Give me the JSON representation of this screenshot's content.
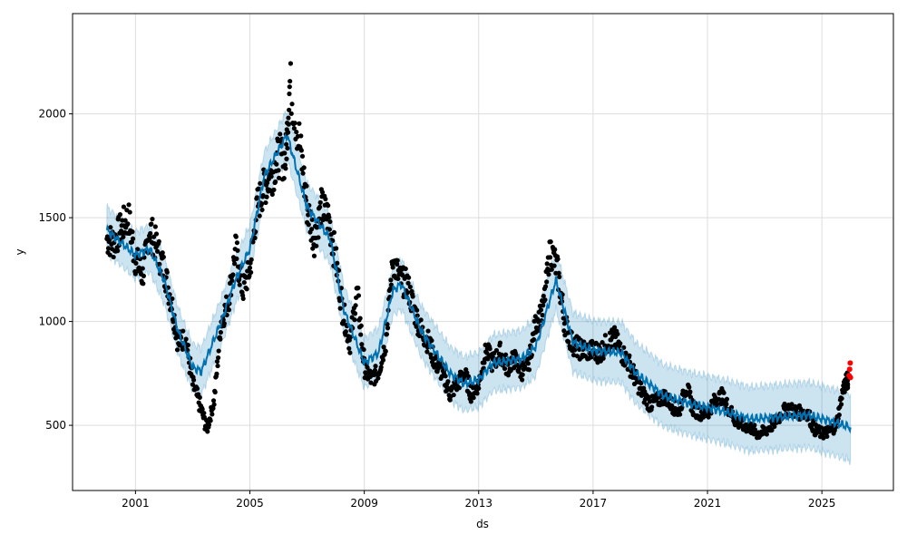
{
  "chart_data": {
    "type": "scatter",
    "title": "",
    "xlabel": "ds",
    "ylabel": "y",
    "xlim": [
      1998.8,
      2027.5
    ],
    "ylim": [
      186,
      2483
    ],
    "x_ticks": [
      "2001",
      "2005",
      "2009",
      "2013",
      "2017",
      "2021",
      "2025"
    ],
    "x_tick_values": [
      2001,
      2005,
      2009,
      2013,
      2017,
      2021,
      2025
    ],
    "y_ticks": [
      "500",
      "1000",
      "1500",
      "2000"
    ],
    "y_tick_values": [
      500,
      1000,
      1500,
      2000
    ],
    "grid": true,
    "colors": {
      "observed": "#000000",
      "recent": "#ff0000",
      "yhat": "#0072B2",
      "band": "#0072B2"
    },
    "observed": [
      [
        2000.0,
        1400
      ],
      [
        2000.25,
        1380
      ],
      [
        2000.5,
        1450
      ],
      [
        2000.75,
        1500
      ],
      [
        2001.0,
        1300
      ],
      [
        2001.25,
        1220
      ],
      [
        2001.5,
        1450
      ],
      [
        2001.75,
        1350
      ],
      [
        2002.0,
        1250
      ],
      [
        2002.25,
        1100
      ],
      [
        2002.5,
        900
      ],
      [
        2002.75,
        920
      ],
      [
        2003.0,
        700
      ],
      [
        2003.25,
        600
      ],
      [
        2003.5,
        480
      ],
      [
        2003.75,
        620
      ],
      [
        2004.0,
        1000
      ],
      [
        2004.25,
        1100
      ],
      [
        2004.5,
        1350
      ],
      [
        2004.75,
        1150
      ],
      [
        2005.0,
        1250
      ],
      [
        2005.25,
        1550
      ],
      [
        2005.5,
        1650
      ],
      [
        2005.75,
        1700
      ],
      [
        2006.0,
        1800
      ],
      [
        2006.25,
        1780
      ],
      [
        2006.4,
        2150
      ],
      [
        2006.75,
        1850
      ],
      [
        2007.0,
        1550
      ],
      [
        2007.25,
        1400
      ],
      [
        2007.5,
        1550
      ],
      [
        2007.75,
        1500
      ],
      [
        2008.0,
        1300
      ],
      [
        2008.25,
        1050
      ],
      [
        2008.5,
        900
      ],
      [
        2008.75,
        1150
      ],
      [
        2009.0,
        780
      ],
      [
        2009.25,
        720
      ],
      [
        2009.5,
        760
      ],
      [
        2009.75,
        900
      ],
      [
        2010.0,
        1300
      ],
      [
        2010.25,
        1200
      ],
      [
        2010.5,
        1180
      ],
      [
        2010.75,
        1050
      ],
      [
        2011.0,
        950
      ],
      [
        2011.25,
        900
      ],
      [
        2011.5,
        800
      ],
      [
        2011.75,
        750
      ],
      [
        2012.0,
        650
      ],
      [
        2012.25,
        700
      ],
      [
        2012.5,
        750
      ],
      [
        2012.75,
        650
      ],
      [
        2013.0,
        700
      ],
      [
        2013.25,
        860
      ],
      [
        2013.5,
        800
      ],
      [
        2013.75,
        850
      ],
      [
        2014.0,
        780
      ],
      [
        2014.25,
        820
      ],
      [
        2014.5,
        760
      ],
      [
        2014.75,
        800
      ],
      [
        2015.0,
        1000
      ],
      [
        2015.25,
        1050
      ],
      [
        2015.5,
        1350
      ],
      [
        2015.75,
        1250
      ],
      [
        2016.0,
        1000
      ],
      [
        2016.25,
        900
      ],
      [
        2016.5,
        870
      ],
      [
        2016.75,
        860
      ],
      [
        2017.0,
        860
      ],
      [
        2017.25,
        850
      ],
      [
        2017.5,
        900
      ],
      [
        2017.75,
        920
      ],
      [
        2018.0,
        850
      ],
      [
        2018.25,
        800
      ],
      [
        2018.5,
        720
      ],
      [
        2018.75,
        650
      ],
      [
        2019.0,
        600
      ],
      [
        2019.25,
        620
      ],
      [
        2019.5,
        640
      ],
      [
        2019.75,
        600
      ],
      [
        2020.0,
        560
      ],
      [
        2020.25,
        690
      ],
      [
        2020.5,
        580
      ],
      [
        2020.75,
        560
      ],
      [
        2021.0,
        560
      ],
      [
        2021.25,
        620
      ],
      [
        2021.5,
        640
      ],
      [
        2021.75,
        580
      ],
      [
        2022.0,
        520
      ],
      [
        2022.25,
        500
      ],
      [
        2022.5,
        490
      ],
      [
        2022.75,
        460
      ],
      [
        2023.0,
        470
      ],
      [
        2023.25,
        500
      ],
      [
        2023.5,
        540
      ],
      [
        2023.75,
        580
      ],
      [
        2024.0,
        570
      ],
      [
        2024.25,
        560
      ],
      [
        2024.5,
        560
      ],
      [
        2024.75,
        480
      ],
      [
        2025.0,
        460
      ],
      [
        2025.25,
        470
      ],
      [
        2025.5,
        500
      ],
      [
        2025.75,
        680
      ],
      [
        2025.9,
        720
      ]
    ],
    "recent": [
      [
        2025.95,
        740
      ],
      [
        2025.97,
        770
      ],
      [
        2025.99,
        800
      ],
      [
        2026.0,
        730
      ]
    ],
    "yhat": [
      [
        2000,
        1440
      ],
      [
        2001,
        1320
      ],
      [
        2001.5,
        1350
      ],
      [
        2002,
        1200
      ],
      [
        2002.5,
        950
      ],
      [
        2003,
        780
      ],
      [
        2003.3,
        760
      ],
      [
        2004,
        1000
      ],
      [
        2004.5,
        1200
      ],
      [
        2005,
        1350
      ],
      [
        2005.5,
        1700
      ],
      [
        2006.3,
        1900
      ],
      [
        2007,
        1550
      ],
      [
        2007.8,
        1400
      ],
      [
        2008.3,
        1050
      ],
      [
        2009,
        800
      ],
      [
        2009.5,
        850
      ],
      [
        2010,
        1150
      ],
      [
        2010.3,
        1180
      ],
      [
        2011,
        950
      ],
      [
        2012,
        750
      ],
      [
        2012.5,
        700
      ],
      [
        2013,
        720
      ],
      [
        2013.5,
        800
      ],
      [
        2014.5,
        820
      ],
      [
        2015,
        880
      ],
      [
        2015.7,
        1200
      ],
      [
        2016.3,
        900
      ],
      [
        2017,
        860
      ],
      [
        2018,
        850
      ],
      [
        2018.5,
        750
      ],
      [
        2019.5,
        640
      ],
      [
        2020.5,
        600
      ],
      [
        2021.5,
        570
      ],
      [
        2022.5,
        530
      ],
      [
        2023.5,
        540
      ],
      [
        2024.5,
        550
      ],
      [
        2025.3,
        520
      ],
      [
        2026,
        490
      ]
    ],
    "band_halfwidth": [
      [
        2000,
        110
      ],
      [
        2010,
        120
      ],
      [
        2015,
        140
      ],
      [
        2020,
        150
      ],
      [
        2026,
        160
      ]
    ]
  }
}
